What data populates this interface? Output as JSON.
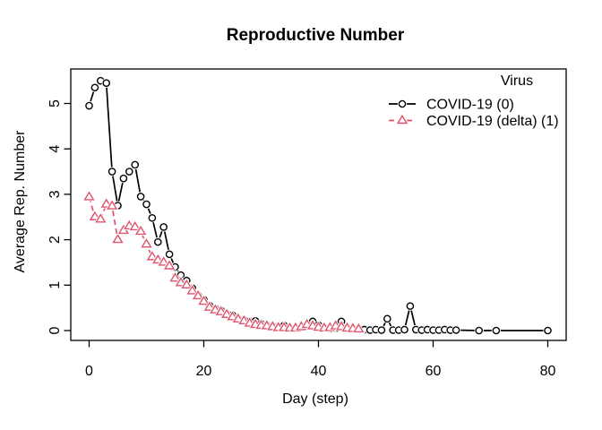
{
  "figure": {
    "title": "Reproductive Number",
    "x_axis": {
      "label": "Day (step)",
      "tick_labels": [
        "0",
        "20",
        "40",
        "60",
        "80"
      ],
      "tick_values": [
        0,
        20,
        40,
        60,
        80
      ]
    },
    "y_axis": {
      "label": "Average Rep. Number",
      "tick_labels": [
        "0",
        "1",
        "2",
        "3",
        "4",
        "5"
      ],
      "tick_values": [
        0,
        1,
        2,
        3,
        4,
        5
      ]
    },
    "legend": {
      "title": "Virus",
      "entries": [
        {
          "label": "COVID-19 (0)",
          "color": "#000000",
          "marker": "circle",
          "line": "solid"
        },
        {
          "label": "COVID-19 (delta) (1)",
          "color": "#DF536B",
          "marker": "triangle",
          "line": "dashed"
        }
      ]
    }
  },
  "chart_data": {
    "type": "line",
    "title": "Reproductive Number",
    "xlabel": "Day (step)",
    "ylabel": "Average Rep. Number",
    "xlim": [
      -3,
      83
    ],
    "ylim": [
      -0.2,
      5.6
    ],
    "grid": false,
    "legend_position": "top-right",
    "legend_title": "Virus",
    "series": [
      {
        "name": "COVID-19 (0)",
        "color": "#000000",
        "marker": "circle",
        "linestyle": "solid",
        "x": [
          0,
          1,
          2,
          3,
          4,
          5,
          6,
          7,
          8,
          9,
          10,
          11,
          12,
          13,
          14,
          15,
          16,
          17,
          18,
          19,
          20,
          21,
          22,
          23,
          24,
          25,
          26,
          27,
          28,
          29,
          30,
          31,
          32,
          33,
          34,
          35,
          36,
          37,
          38,
          39,
          40,
          41,
          42,
          43,
          44,
          45,
          46,
          47,
          48,
          49,
          50,
          51,
          52,
          53,
          54,
          55,
          56,
          57,
          58,
          59,
          60,
          61,
          62,
          63,
          64,
          68,
          71,
          80
        ],
        "y": [
          4.95,
          5.35,
          5.5,
          5.45,
          3.5,
          2.75,
          3.35,
          3.5,
          3.65,
          2.95,
          2.78,
          2.48,
          1.95,
          2.28,
          1.68,
          1.4,
          1.22,
          1.1,
          0.93,
          0.77,
          0.68,
          0.55,
          0.48,
          0.44,
          0.37,
          0.34,
          0.26,
          0.23,
          0.2,
          0.21,
          0.15,
          0.12,
          0.1,
          0.08,
          0.11,
          0.06,
          0.05,
          0.07,
          0.1,
          0.2,
          0.12,
          0.06,
          0.04,
          0.05,
          0.2,
          0.06,
          0.03,
          0.04,
          0.02,
          0.01,
          0.02,
          0.01,
          0.26,
          0.01,
          0.01,
          0.02,
          0.54,
          0.02,
          0.01,
          0.02,
          0.01,
          0.01,
          0.02,
          0.01,
          0.01,
          0,
          0,
          0
        ]
      },
      {
        "name": "COVID-19 (delta) (1)",
        "color": "#DF536B",
        "marker": "triangle",
        "linestyle": "dashed",
        "x": [
          0,
          1,
          2,
          3,
          4,
          5,
          6,
          7,
          8,
          9,
          10,
          11,
          12,
          13,
          14,
          15,
          16,
          17,
          18,
          19,
          20,
          21,
          22,
          23,
          24,
          25,
          26,
          27,
          28,
          29,
          30,
          31,
          32,
          33,
          34,
          35,
          36,
          37,
          38,
          39,
          40,
          41,
          42,
          43,
          44,
          45,
          46,
          47
        ],
        "y": [
          2.94,
          2.5,
          2.45,
          2.78,
          2.74,
          2.0,
          2.2,
          2.3,
          2.28,
          2.18,
          1.9,
          1.62,
          1.55,
          1.5,
          1.42,
          1.15,
          1.05,
          1.0,
          0.87,
          0.76,
          0.64,
          0.51,
          0.45,
          0.41,
          0.35,
          0.3,
          0.25,
          0.21,
          0.16,
          0.13,
          0.11,
          0.1,
          0.08,
          0.06,
          0.06,
          0.05,
          0.05,
          0.08,
          0.13,
          0.1,
          0.07,
          0.05,
          0.06,
          0.1,
          0.08,
          0.05,
          0.04,
          0.03
        ]
      }
    ]
  }
}
